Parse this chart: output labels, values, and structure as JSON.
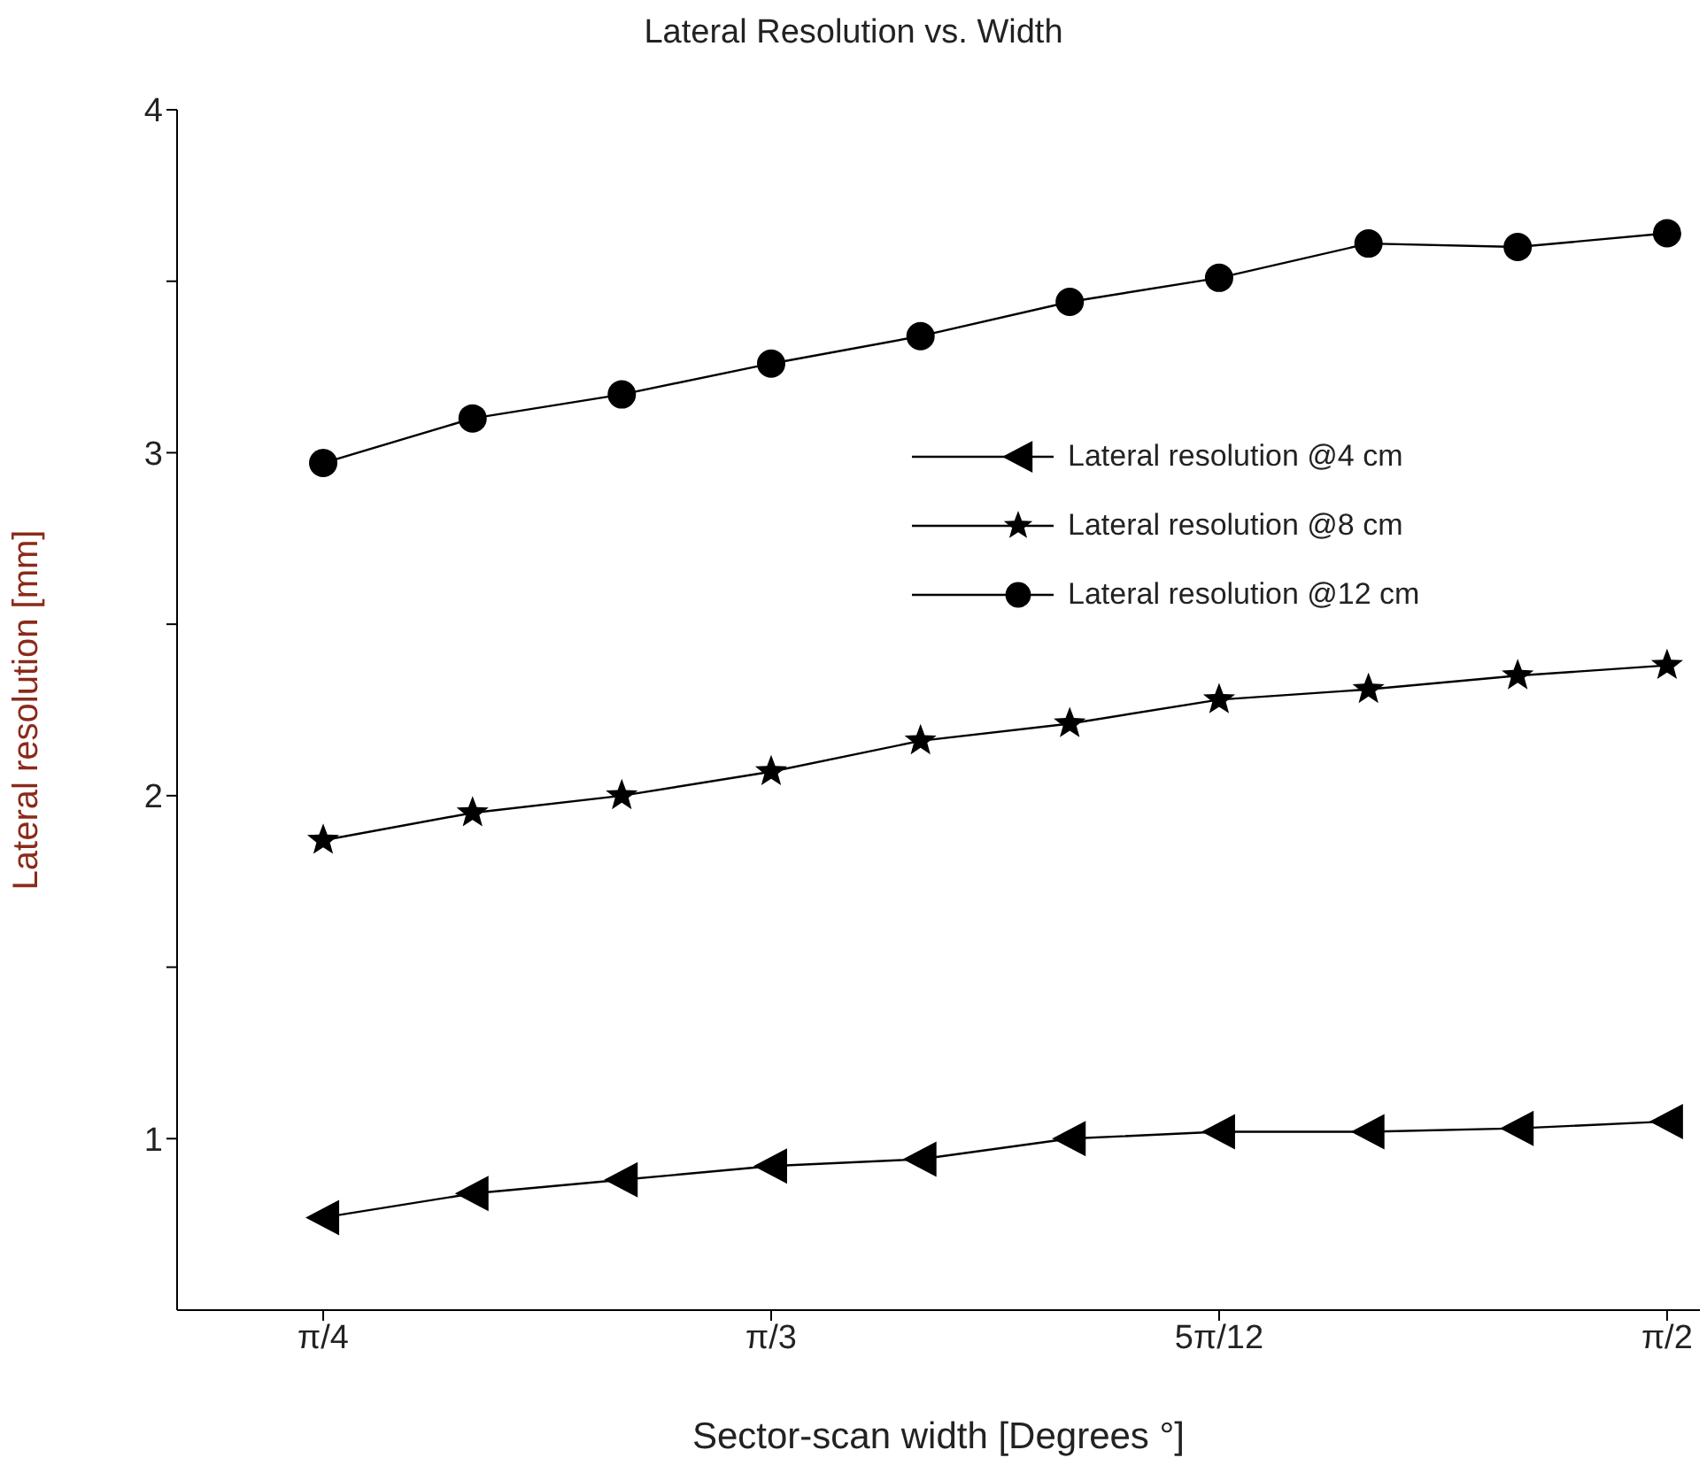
{
  "chart_data": {
    "type": "line",
    "title": "Lateral Resolution vs. Width",
    "xlabel": "Sector-scan width [Degrees °]",
    "ylabel": "Lateral resolution [mm]",
    "x": [
      0.7854,
      0.8727,
      0.9599,
      1.0472,
      1.1345,
      1.2217,
      1.309,
      1.3963,
      1.4835,
      1.5708
    ],
    "series": [
      {
        "name": "Lateral resolution @4 cm",
        "color": "#000000",
        "marker": "triangle",
        "values": [
          0.77,
          0.84,
          0.88,
          0.92,
          0.94,
          1.0,
          1.02,
          1.02,
          1.03,
          1.05
        ]
      },
      {
        "name": "Lateral resolution @8 cm",
        "color": "#000000",
        "marker": "star",
        "values": [
          1.87,
          1.95,
          2.0,
          2.07,
          2.16,
          2.21,
          2.28,
          2.31,
          2.35,
          2.38
        ]
      },
      {
        "name": "Lateral resolution @12 cm",
        "color": "#000000",
        "marker": "circle",
        "values": [
          2.97,
          3.1,
          3.17,
          3.26,
          3.34,
          3.44,
          3.51,
          3.61,
          3.6,
          3.64
        ]
      }
    ],
    "xlim": [
      0.7,
      1.59
    ],
    "xticks": [
      {
        "value": 0.7854,
        "label": "π/4"
      },
      {
        "value": 1.0472,
        "label": "π/3"
      },
      {
        "value": 1.309,
        "label": "5π/12"
      },
      {
        "value": 1.5708,
        "label": "π/2"
      }
    ],
    "ylim": [
      0.5,
      4
    ],
    "yticks": [
      {
        "value": 1,
        "label": "1"
      },
      {
        "value": 1.5,
        "label": null
      },
      {
        "value": 2,
        "label": "2"
      },
      {
        "value": 2.5,
        "label": null
      },
      {
        "value": 3,
        "label": "3"
      },
      {
        "value": 3.5,
        "label": null
      },
      {
        "value": 4,
        "label": "4"
      }
    ],
    "legend": "right",
    "grid": false,
    "line_style": "solid"
  }
}
